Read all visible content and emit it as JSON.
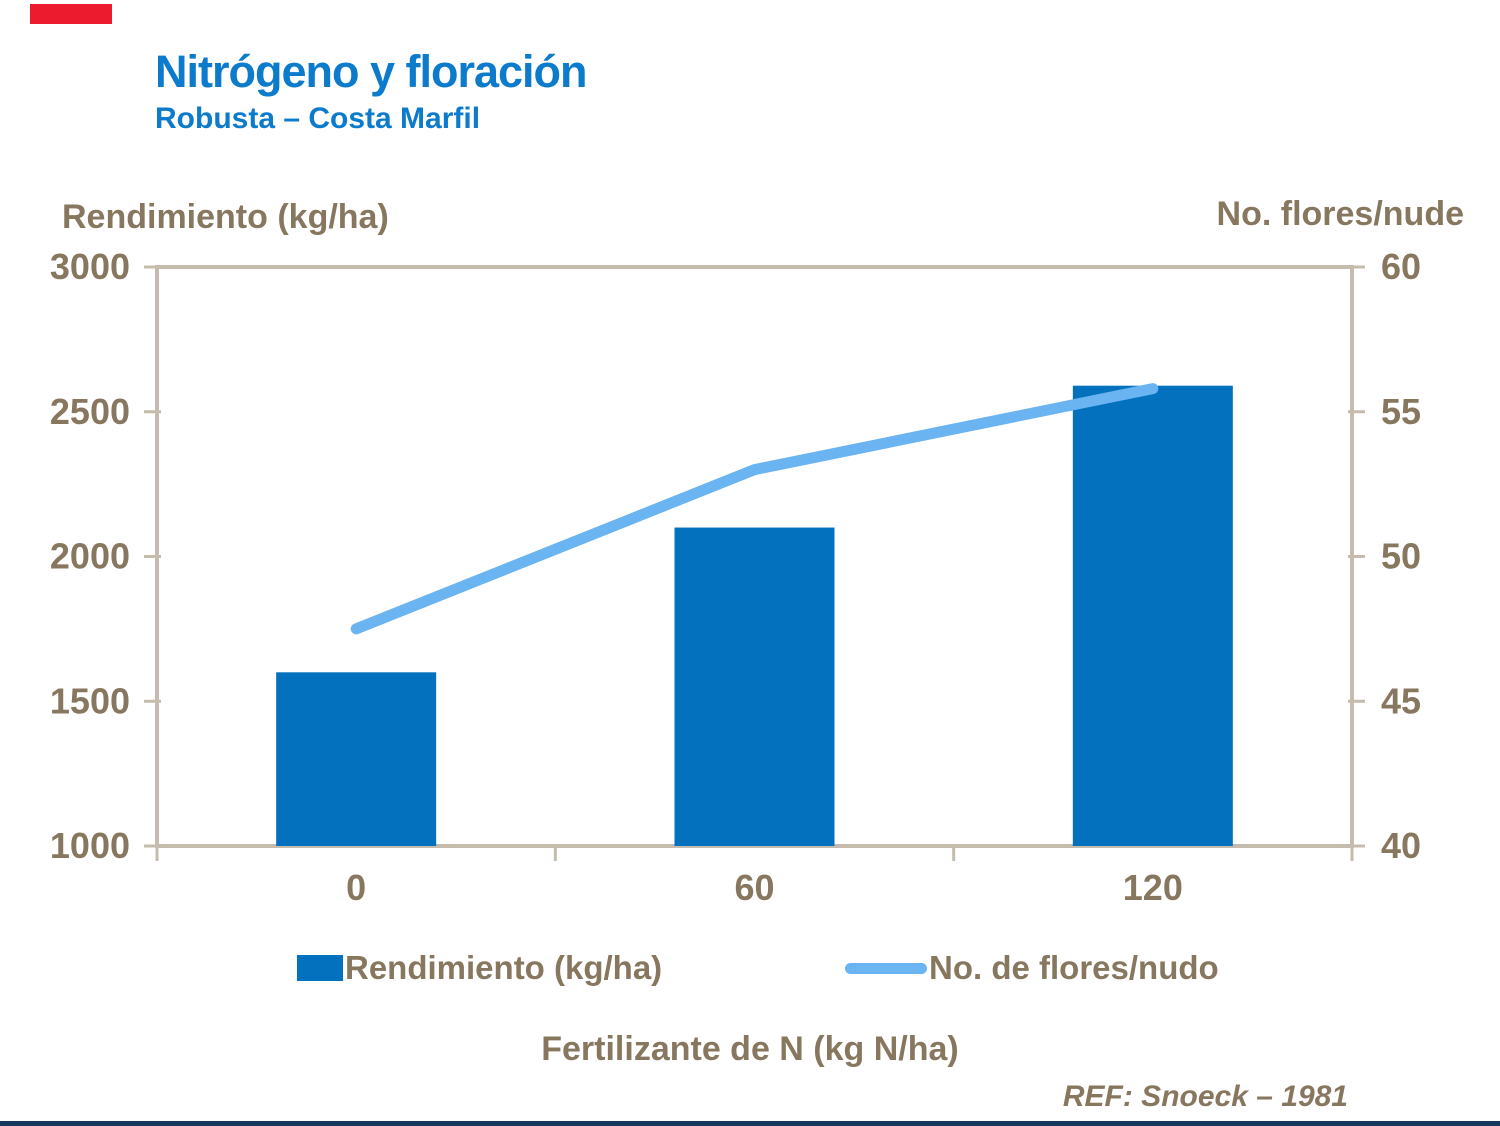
{
  "slide": {
    "title": "Nitrógeno y floración",
    "subtitle": "Robusta – Costa Marfil",
    "ref": "REF: Snoeck – 1981"
  },
  "colors": {
    "title_blue": "#0C7BCB",
    "bar_blue": "#0371BD",
    "line_light_blue": "#6AB4F2",
    "text_brown": "#87775F",
    "axis_tan": "#C6BCAE",
    "accent_red": "#ED1B2E",
    "footer_navy": "#17365D"
  },
  "chart_data": {
    "type": "bar",
    "subtype": "combo bar+line, dual axis",
    "categories": [
      "0",
      "60",
      "120"
    ],
    "series": [
      {
        "name": "Rendimiento (kg/ha)",
        "type": "bar",
        "axis": "left",
        "values": [
          1600,
          2100,
          2590
        ]
      },
      {
        "name": "No. de flores/nudo",
        "type": "line",
        "axis": "right",
        "values": [
          47.5,
          53,
          55.8
        ]
      }
    ],
    "left_axis": {
      "title": "Rendimiento (kg/ha)",
      "min": 1000,
      "max": 3000,
      "ticks": [
        3000,
        2500,
        2000,
        1500,
        1000
      ]
    },
    "right_axis": {
      "title": "No. flores/nude",
      "min": 40,
      "max": 60,
      "ticks": [
        60,
        55,
        50,
        45,
        40
      ]
    },
    "xlabel": "Fertilizante de N (kg N/ha)",
    "legend": [
      "Rendimiento (kg/ha)",
      "No. de flores/nudo"
    ],
    "legend_position": "bottom",
    "grid": false
  }
}
